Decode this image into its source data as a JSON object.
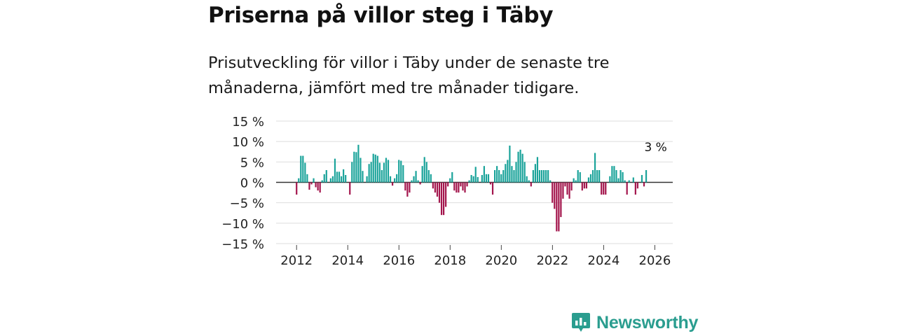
{
  "title": "Priserna på villor steg i Täby",
  "subtitle": "Prisutveckling för villor i Täby under de senaste tre månaderna, jämfört med tre månader tidigare.",
  "brand": {
    "name": "Newsworthy",
    "icon": "newsworthy-logo-icon"
  },
  "colors": {
    "positive": "#1aa39a",
    "negative": "#a3154c",
    "grid": "#dddddd",
    "zero": "#333333"
  },
  "chart_data": {
    "type": "bar",
    "title": "Priserna på villor steg i Täby",
    "xlabel": "",
    "ylabel": "",
    "ylim": [
      -15,
      15
    ],
    "yticks": [
      15,
      10,
      5,
      0,
      -5,
      -10,
      -15
    ],
    "ytick_labels": [
      "15 %",
      "10 %",
      "5 %",
      "0 %",
      "−5 %",
      "−10 %",
      "−15 %"
    ],
    "xlim": [
      2011.2,
      2026.7
    ],
    "xticks": [
      2012,
      2014,
      2016,
      2018,
      2020,
      2022,
      2024,
      2026
    ],
    "xtick_labels": [
      "2012",
      "2014",
      "2016",
      "2018",
      "2020",
      "2022",
      "2024",
      "2026"
    ],
    "annotation": {
      "text": "3 %",
      "x": 2026.0,
      "y": 3
    },
    "x_start": 2012.0,
    "step": 0.0833,
    "values": [
      -3,
      1,
      6.5,
      6.5,
      4.8,
      2,
      -1.8,
      -0.5,
      1,
      -1.2,
      -2,
      -2.5,
      0.5,
      2,
      3,
      0,
      1,
      1.5,
      5.8,
      2.6,
      2.6,
      1.5,
      3.2,
      1.8,
      0,
      -3,
      5,
      7.5,
      7.4,
      9.2,
      6,
      2.8,
      0,
      1.5,
      4.5,
      5,
      7,
      6.8,
      6.5,
      4.8,
      3,
      4.8,
      6,
      5.5,
      1.5,
      -0.8,
      1,
      2,
      5.5,
      5.3,
      4.2,
      -2,
      -3.5,
      -2.5,
      0.5,
      1.5,
      2.8,
      0.5,
      -0.5,
      4,
      6.2,
      5,
      3,
      2,
      -1.5,
      -2.5,
      -3.5,
      -5,
      -8,
      -8,
      -6,
      -1,
      1,
      2.5,
      -2,
      -2.5,
      -2.5,
      -1,
      -2,
      -2.5,
      -1,
      0.5,
      1.8,
      1.5,
      3.8,
      1.3,
      0,
      1.8,
      4,
      2,
      2,
      -0.5,
      -3,
      3,
      4,
      3,
      2,
      3,
      4.5,
      5.5,
      9,
      4,
      3,
      5,
      7.5,
      8,
      7,
      5,
      1.5,
      0.5,
      -1,
      3,
      4.5,
      6.2,
      3,
      3,
      3,
      3,
      3,
      0.5,
      -5,
      -6.5,
      -12,
      -12,
      -8.5,
      -4,
      -1,
      -3,
      -4,
      -2,
      1,
      0.5,
      3,
      2.5,
      -2,
      -1.5,
      -1.5,
      1.2,
      2,
      3,
      7.2,
      3,
      3,
      -3,
      -3,
      -3,
      0,
      1.5,
      4,
      4,
      3,
      1,
      3,
      2.5,
      0.5,
      -3,
      0.5,
      0,
      1.2,
      -3,
      -1.5,
      0,
      1.8,
      -1,
      3
    ]
  }
}
